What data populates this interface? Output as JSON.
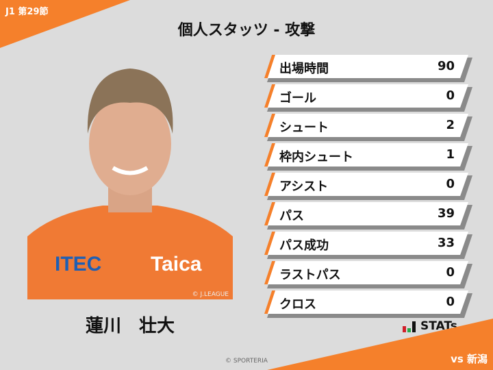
{
  "round": "J1 第29節",
  "title": "個人スタッツ - 攻撃",
  "player": {
    "name": "蓮川　壮大",
    "photo_credit": "© J.LEAGUE",
    "jersey_texts": [
      "ITEC",
      "Taica"
    ]
  },
  "stats": [
    {
      "label": "出場時間",
      "value": "90"
    },
    {
      "label": "ゴール",
      "value": "0"
    },
    {
      "label": "シュート",
      "value": "2"
    },
    {
      "label": "枠内シュート",
      "value": "1"
    },
    {
      "label": "アシスト",
      "value": "0"
    },
    {
      "label": "パス",
      "value": "39"
    },
    {
      "label": "パス成功",
      "value": "33"
    },
    {
      "label": "ラストパス",
      "value": "0"
    },
    {
      "label": "クロス",
      "value": "0"
    }
  ],
  "logo": "STATs",
  "opponent": "vs 新潟",
  "copyright": "© SPORTERIA",
  "colors": {
    "accent": "#f5802b",
    "background": "#dcdcdc"
  }
}
